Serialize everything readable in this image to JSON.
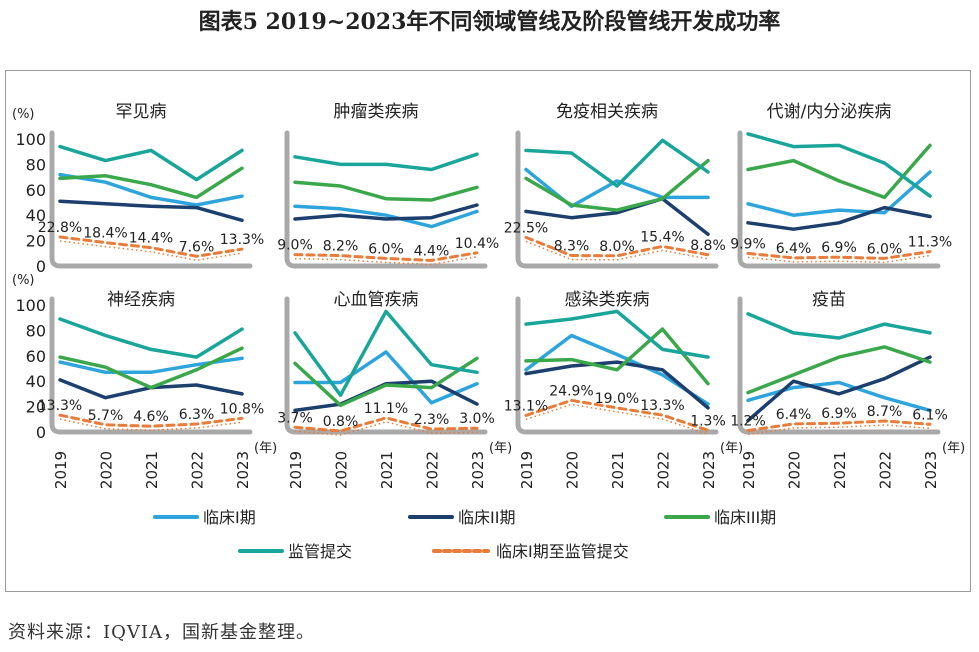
{
  "figure_title": "图表5 2019~2023年不同领域管线及阶段管线开发成功率",
  "source_note": "资料来源：IQVIA，国新基金整理。",
  "y_unit": "(%)",
  "x_unit": "(年)",
  "legend": [
    {
      "key": "p1",
      "label": "临床I期"
    },
    {
      "key": "p2",
      "label": "临床II期"
    },
    {
      "key": "p3",
      "label": "临床III期"
    },
    {
      "key": "reg",
      "label": "监管提交"
    },
    {
      "key": "loa",
      "label": "临床I期至监管提交"
    }
  ],
  "colors": {
    "p1": "#2ea4dc",
    "p2": "#1c3f6e",
    "p3": "#3aa84a",
    "reg": "#1aa59a",
    "loa": "#e87c3a",
    "axis": "#a9a9a9"
  },
  "chart_data": [
    {
      "type": "line",
      "title": "罕见病",
      "x": [
        "2019",
        "2020",
        "2021",
        "2022",
        "2023"
      ],
      "ylim": [
        0,
        100
      ],
      "yticks": [
        0,
        20,
        40,
        60,
        80,
        100
      ],
      "series": [
        {
          "name": "临床I期",
          "values": [
            72,
            66,
            54,
            48,
            55
          ]
        },
        {
          "name": "临床II期",
          "values": [
            51,
            49,
            47,
            46,
            36
          ]
        },
        {
          "name": "临床III期",
          "values": [
            69,
            71,
            64,
            54,
            77
          ]
        },
        {
          "name": "监管提交",
          "values": [
            94,
            83,
            91,
            68,
            91
          ]
        },
        {
          "name": "临床I期至监管提交",
          "values": [
            22.8,
            18.4,
            14.4,
            7.6,
            13.3
          ]
        }
      ],
      "labels": [
        "22.8%",
        "18.4%",
        "14.4%",
        "7.6%",
        "13.3%"
      ]
    },
    {
      "type": "line",
      "title": "肿瘤类疾病",
      "x": [
        "2019",
        "2020",
        "2021",
        "2022",
        "2023"
      ],
      "ylim": [
        0,
        100
      ],
      "yticks": [
        0,
        20,
        40,
        60,
        80,
        100
      ],
      "series": [
        {
          "name": "临床I期",
          "values": [
            47,
            45,
            40,
            31,
            43
          ]
        },
        {
          "name": "临床II期",
          "values": [
            37,
            40,
            37,
            38,
            48
          ]
        },
        {
          "name": "临床III期",
          "values": [
            66,
            63,
            53,
            52,
            62
          ]
        },
        {
          "name": "监管提交",
          "values": [
            86,
            80,
            80,
            76,
            88
          ]
        },
        {
          "name": "临床I期至监管提交",
          "values": [
            9.0,
            8.2,
            6.0,
            4.4,
            10.4
          ]
        }
      ],
      "labels": [
        "9.0%",
        "8.2%",
        "6.0%",
        "4.4%",
        "10.4%"
      ]
    },
    {
      "type": "line",
      "title": "免疫相关疾病",
      "x": [
        "2019",
        "2020",
        "2021",
        "2022",
        "2023"
      ],
      "ylim": [
        0,
        100
      ],
      "yticks": [
        0,
        20,
        40,
        60,
        80,
        100
      ],
      "series": [
        {
          "name": "临床I期",
          "values": [
            76,
            47,
            67,
            54,
            54
          ]
        },
        {
          "name": "临床II期",
          "values": [
            43,
            38,
            42,
            53,
            25
          ]
        },
        {
          "name": "临床III期",
          "values": [
            69,
            48,
            44,
            53,
            83
          ]
        },
        {
          "name": "监管提交",
          "values": [
            91,
            89,
            63,
            99,
            74
          ]
        },
        {
          "name": "临床I期至监管提交",
          "values": [
            22.5,
            8.3,
            8.0,
            15.4,
            8.8
          ]
        }
      ],
      "labels": [
        "22.5%",
        "8.3%",
        "8.0%",
        "15.4%",
        "8.8%"
      ]
    },
    {
      "type": "line",
      "title": "代谢/内分泌疾病",
      "x": [
        "2019",
        "2020",
        "2021",
        "2022",
        "2023"
      ],
      "ylim": [
        0,
        100
      ],
      "yticks": [
        0,
        20,
        40,
        60,
        80,
        100
      ],
      "series": [
        {
          "name": "临床I期",
          "values": [
            49,
            40,
            44,
            42,
            74
          ]
        },
        {
          "name": "临床II期",
          "values": [
            34,
            29,
            34,
            46,
            39
          ]
        },
        {
          "name": "临床III期",
          "values": [
            76,
            83,
            67,
            54,
            95
          ]
        },
        {
          "name": "监管提交",
          "values": [
            104,
            94,
            95,
            81,
            55
          ]
        },
        {
          "name": "临床I期至监管提交",
          "values": [
            9.9,
            6.4,
            6.9,
            6.0,
            11.3
          ]
        }
      ],
      "labels": [
        "9.9%",
        "6.4%",
        "6.9%",
        "6.0%",
        "11.3%"
      ]
    },
    {
      "type": "line",
      "title": "神经疾病",
      "x": [
        "2019",
        "2020",
        "2021",
        "2022",
        "2023"
      ],
      "ylim": [
        0,
        100
      ],
      "yticks": [
        0,
        20,
        40,
        60,
        80,
        100
      ],
      "series": [
        {
          "name": "临床I期",
          "values": [
            55,
            47,
            47,
            53,
            58
          ]
        },
        {
          "name": "临床II期",
          "values": [
            41,
            27,
            35,
            37,
            30
          ]
        },
        {
          "name": "临床III期",
          "values": [
            59,
            51,
            35,
            49,
            66
          ]
        },
        {
          "name": "监管提交",
          "values": [
            89,
            76,
            65,
            59,
            81
          ]
        },
        {
          "name": "临床I期至监管提交",
          "values": [
            13.3,
            5.7,
            4.6,
            6.3,
            10.8
          ]
        }
      ],
      "labels": [
        "13.3%",
        "5.7%",
        "4.6%",
        "6.3%",
        "10.8%"
      ]
    },
    {
      "type": "line",
      "title": "心血管疾病",
      "x": [
        "2019",
        "2020",
        "2021",
        "2022",
        "2023"
      ],
      "ylim": [
        0,
        100
      ],
      "yticks": [
        0,
        20,
        40,
        60,
        80,
        100
      ],
      "series": [
        {
          "name": "临床I期",
          "values": [
            39,
            39,
            63,
            23,
            38
          ]
        },
        {
          "name": "临床II期",
          "values": [
            17,
            22,
            38,
            40,
            22
          ]
        },
        {
          "name": "临床III期",
          "values": [
            54,
            21,
            37,
            35,
            58
          ]
        },
        {
          "name": "监管提交",
          "values": [
            78,
            29,
            95,
            53,
            47
          ]
        },
        {
          "name": "临床I期至监管提交",
          "values": [
            3.7,
            0.8,
            11.1,
            2.3,
            3.0
          ]
        }
      ],
      "labels": [
        "3.7%",
        "0.8%",
        "11.1%",
        "2.3%",
        "3.0%"
      ]
    },
    {
      "type": "line",
      "title": "感染类疾病",
      "x": [
        "2019",
        "2020",
        "2021",
        "2022",
        "2023"
      ],
      "ylim": [
        0,
        100
      ],
      "yticks": [
        0,
        20,
        40,
        60,
        80,
        100
      ],
      "series": [
        {
          "name": "临床I期",
          "values": [
            49,
            76,
            61,
            45,
            22
          ]
        },
        {
          "name": "临床II期",
          "values": [
            46,
            52,
            55,
            49,
            19
          ]
        },
        {
          "name": "临床III期",
          "values": [
            56,
            57,
            49,
            81,
            38
          ]
        },
        {
          "name": "监管提交",
          "values": [
            85,
            89,
            95,
            65,
            59
          ]
        },
        {
          "name": "临床I期至监管提交",
          "values": [
            13.1,
            24.9,
            19.0,
            13.3,
            1.3
          ]
        }
      ],
      "labels": [
        "13.1%",
        "24.9%",
        "19.0%",
        "13.3%",
        "1.3%"
      ]
    },
    {
      "type": "line",
      "title": "疫苗",
      "x": [
        "2019",
        "2020",
        "2021",
        "2022",
        "2023"
      ],
      "ylim": [
        0,
        100
      ],
      "yticks": [
        0,
        20,
        40,
        60,
        80,
        100
      ],
      "series": [
        {
          "name": "临床I期",
          "values": [
            25,
            35,
            39,
            27,
            17
          ]
        },
        {
          "name": "临床II期",
          "values": [
            9,
            40,
            30,
            42,
            59
          ]
        },
        {
          "name": "临床III期",
          "values": [
            31,
            45,
            59,
            67,
            55
          ]
        },
        {
          "name": "监管提交",
          "values": [
            93,
            78,
            74,
            85,
            78
          ]
        },
        {
          "name": "临床I期至监管提交",
          "values": [
            1.2,
            6.4,
            6.9,
            8.7,
            6.1
          ]
        }
      ],
      "labels": [
        "1.2%",
        "6.4%",
        "6.9%",
        "8.7%",
        "6.1%"
      ]
    }
  ]
}
